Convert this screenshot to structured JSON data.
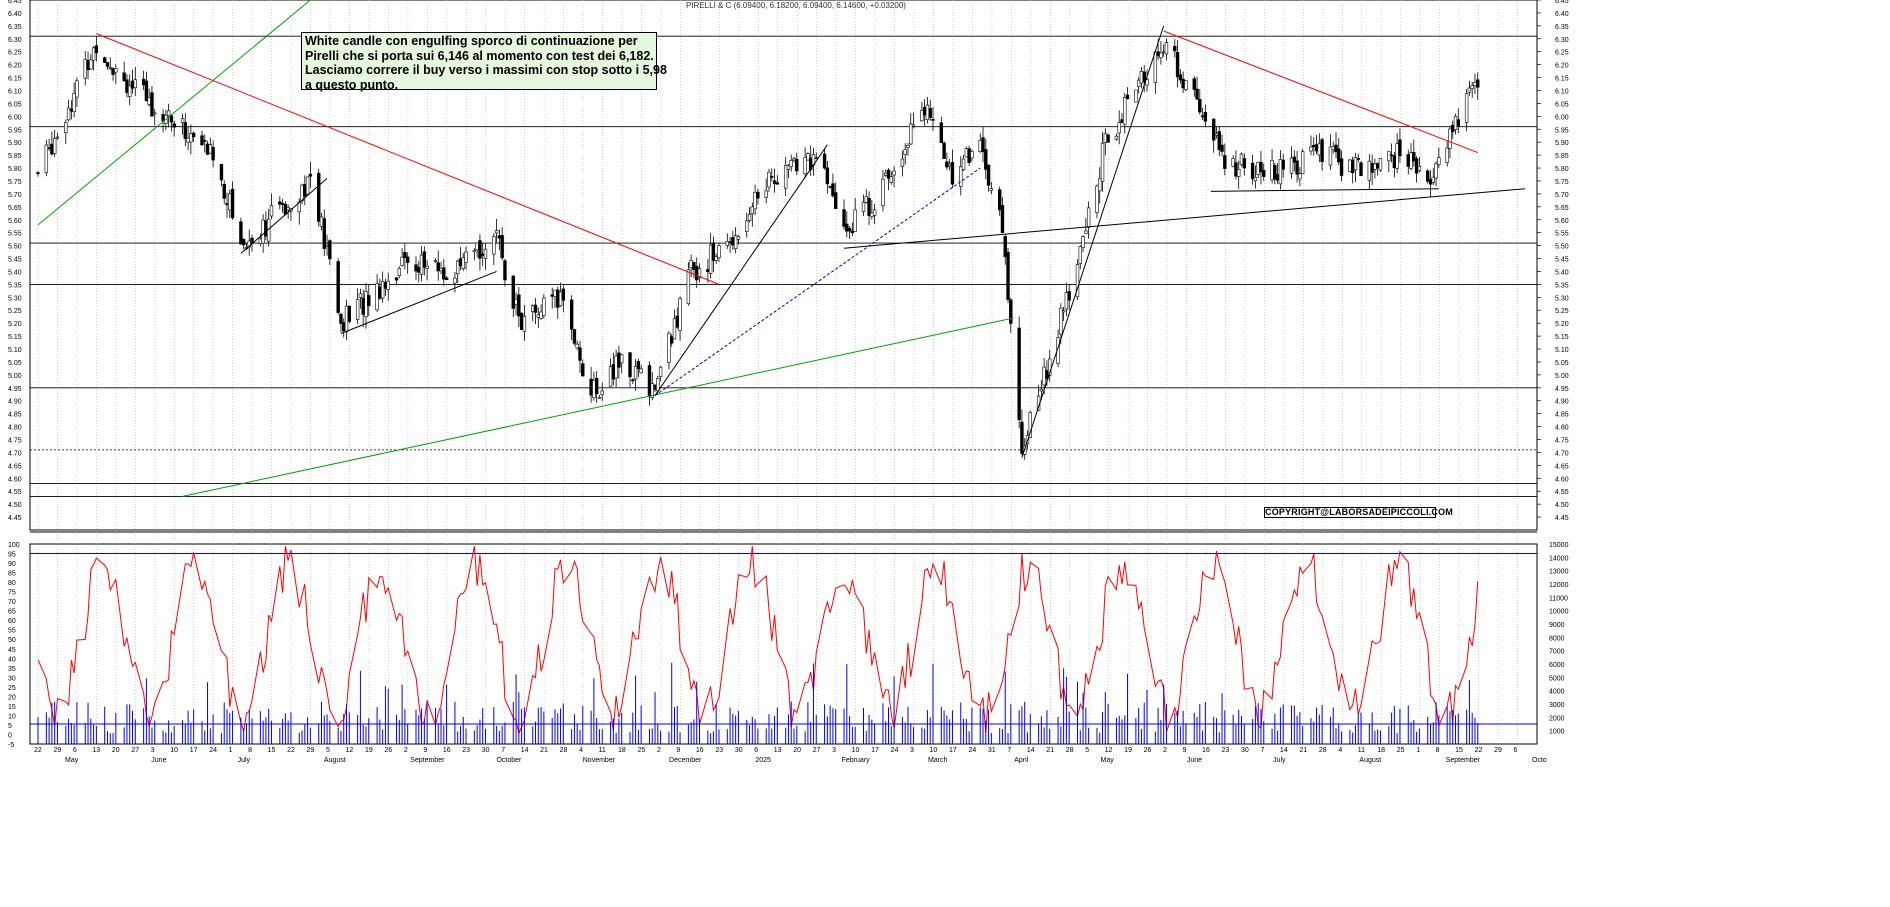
{
  "header": {
    "title": "PIRELLI & C (6.09400, 6.18200, 6.09400, 6.14600, +0.03200)"
  },
  "note": {
    "lines": [
      "White candle con engulfing sporco di continuazione per",
      "Pirelli che si porta sui 6,146 al momento con test dei 6,182.",
      "Lasciamo correre il buy verso i massimi con stop sotto i 5,98",
      "a questo punto."
    ]
  },
  "copyright": "COPYRIGHT@LABORSADEIPICCOLI.COM",
  "colors": {
    "resistance": "#ff0000",
    "support_long": "#00a000",
    "trend": "#000000",
    "dashed_trend": "#0000cc",
    "indicator": "#ff0000",
    "volume": "#0000ff",
    "level_line": "#0000ff"
  },
  "chart_data": [
    {
      "type": "candlestick",
      "title": "PIRELLI & C",
      "ylim": [
        4.4,
        6.45
      ],
      "y_ticks": [
        "6.45",
        "6.40",
        "6.35",
        "6.30",
        "6.25",
        "6.20",
        "6.15",
        "6.10",
        "6.05",
        "6.00",
        "5.95",
        "5.90",
        "5.85",
        "5.80",
        "5.75",
        "5.70",
        "5.65",
        "5.60",
        "5.55",
        "5.50",
        "5.45",
        "5.40",
        "5.35",
        "5.30",
        "5.25",
        "5.20",
        "5.15",
        "5.10",
        "5.05",
        "5.00",
        "4.95",
        "4.90",
        "4.85",
        "4.80",
        "4.75",
        "4.70",
        "4.65",
        "4.60",
        "4.55",
        "4.50",
        "4.45"
      ],
      "horizontal_levels": [
        6.31,
        5.96,
        5.51,
        5.35,
        4.95,
        4.58,
        4.53
      ],
      "dotted_level": 4.71,
      "key_points": [
        {
          "date": "2024-05-10",
          "high": 6.32
        },
        {
          "date": "2024-07-02",
          "low": 5.47
        },
        {
          "date": "2024-08-06",
          "low": 5.16
        },
        {
          "date": "2024-11-04",
          "low": 4.88
        },
        {
          "date": "2024-11-27",
          "low": 4.92
        },
        {
          "date": "2025-01-06",
          "high": 5.88
        },
        {
          "date": "2025-03-03",
          "high": 6.13
        },
        {
          "date": "2025-04-08",
          "low": 4.69
        },
        {
          "date": "2025-05-29",
          "high": 6.35
        },
        {
          "date": "2025-09-01",
          "low": 5.72
        },
        {
          "date": "2025-09-19",
          "close": 6.146,
          "high": 6.182
        }
      ]
    },
    {
      "type": "line",
      "name": "oscillator",
      "ylim": [
        -5,
        100
      ],
      "y_ticks": [
        "100",
        "95",
        "90",
        "85",
        "80",
        "75",
        "70",
        "65",
        "60",
        "55",
        "50",
        "45",
        "40",
        "35",
        "30",
        "25",
        "20",
        "15",
        "10",
        "5",
        "0",
        "-5"
      ],
      "level": 95
    },
    {
      "type": "bar",
      "name": "volume",
      "ylim": [
        0,
        15000
      ],
      "y_ticks": [
        "15000",
        "14000",
        "13000",
        "12000",
        "11000",
        "10000",
        "9000",
        "8000",
        "7000",
        "6000",
        "5000",
        "4000",
        "3000",
        "2000",
        "1000"
      ]
    }
  ],
  "x_axis": {
    "day_ticks": [
      "22",
      "29",
      "6",
      "13",
      "20",
      "27",
      "3",
      "10",
      "17",
      "24",
      "1",
      "8",
      "15",
      "22",
      "29",
      "5",
      "12",
      "19",
      "26",
      "2",
      "9",
      "16",
      "23",
      "30",
      "7",
      "14",
      "21",
      "28",
      "4",
      "11",
      "18",
      "25",
      "2",
      "9",
      "16",
      "23",
      "30",
      "6",
      "13",
      "20",
      "27",
      "3",
      "10",
      "17",
      "24",
      "3",
      "10",
      "17",
      "24",
      "31",
      "7",
      "14",
      "21",
      "28",
      "5",
      "12",
      "19",
      "26",
      "2",
      "9",
      "16",
      "23",
      "30",
      "7",
      "14",
      "21",
      "28",
      "4",
      "11",
      "18",
      "25",
      "1",
      "8",
      "15",
      "22",
      "29",
      "6"
    ],
    "months": [
      "May",
      "June",
      "July",
      "August",
      "September",
      "October",
      "November",
      "December",
      "2025",
      "February",
      "March",
      "April",
      "May",
      "June",
      "July",
      "August",
      "September",
      "Octo"
    ]
  }
}
